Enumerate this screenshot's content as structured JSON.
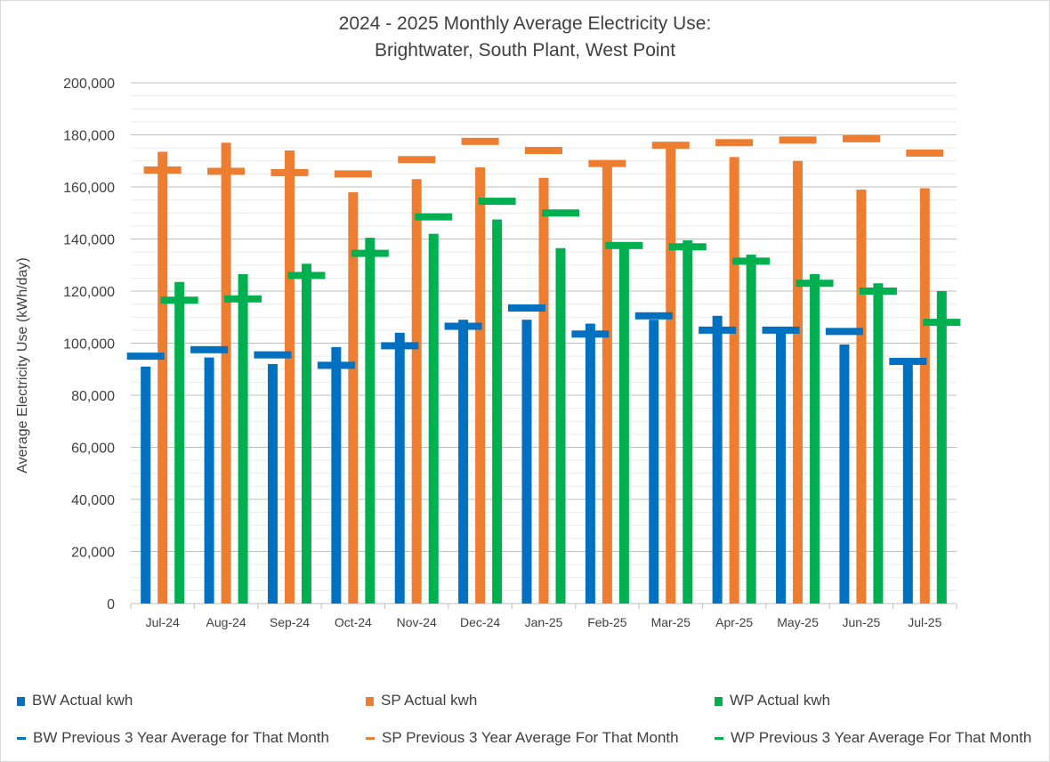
{
  "chart_data": {
    "type": "bar",
    "title": "2024 - 2025 Monthly Average Electricity Use:",
    "subtitle": "Brightwater, South Plant, West Point",
    "xlabel": "",
    "ylabel": "Average Electricity Use (kWh/day)",
    "ylim": [
      0,
      200000
    ],
    "major_ticks": [
      "0",
      "20,000",
      "40,000",
      "60,000",
      "80,000",
      "100,000",
      "120,000",
      "140,000",
      "160,000",
      "180,000",
      "200,000"
    ],
    "grid": true,
    "legend_position": "bottom",
    "categories": [
      "Jul-24",
      "Aug-24",
      "Sep-24",
      "Oct-24",
      "Nov-24",
      "Dec-24",
      "Jan-25",
      "Feb-25",
      "Mar-25",
      "Apr-25",
      "May-25",
      "Jun-25",
      "Jul-25"
    ],
    "series": [
      {
        "name": "BW Actual kwh",
        "kind": "bar",
        "color": "#0070c0",
        "values": [
          91000,
          94500,
          92000,
          98500,
          104000,
          109000,
          109000,
          107500,
          109000,
          110500,
          105500,
          99500,
          93000
        ]
      },
      {
        "name": "SP Actual kwh",
        "kind": "bar",
        "color": "#ed7d31",
        "values": [
          173500,
          177000,
          174000,
          158000,
          163000,
          167500,
          163500,
          168500,
          175000,
          171500,
          170000,
          159000,
          159500
        ]
      },
      {
        "name": "WP Actual kwh",
        "kind": "bar",
        "color": "#00b050",
        "values": [
          123500,
          126500,
          130500,
          140500,
          142000,
          147500,
          136500,
          136500,
          139500,
          134000,
          126500,
          123000,
          120000
        ]
      },
      {
        "name": "BW Previous 3 Year Average for That Month",
        "kind": "marker",
        "color": "#0070c0",
        "values": [
          95000,
          97500,
          95500,
          91500,
          99000,
          106500,
          113500,
          103500,
          110500,
          105000,
          105000,
          104500,
          93000
        ]
      },
      {
        "name": "SP Previous 3 Year Average For That Month",
        "kind": "marker",
        "color": "#ed7d31",
        "values": [
          166500,
          166000,
          165500,
          165000,
          170500,
          177500,
          174000,
          169000,
          176000,
          177000,
          178000,
          178500,
          173000
        ]
      },
      {
        "name": "WP Previous 3 Year Average For That Month",
        "kind": "marker",
        "color": "#00b050",
        "values": [
          116500,
          117000,
          126000,
          134500,
          148500,
          154500,
          150000,
          137500,
          137000,
          131500,
          123000,
          120000,
          108000
        ]
      }
    ]
  }
}
